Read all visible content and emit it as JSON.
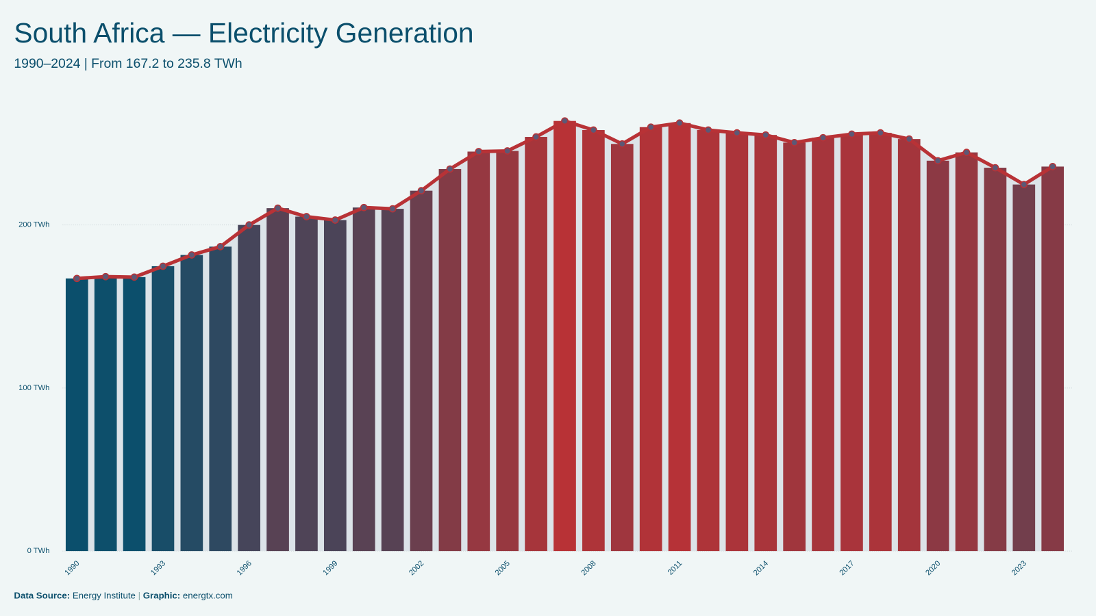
{
  "chart_data": {
    "type": "bar",
    "title": "South Africa — Electricity Generation",
    "subtitle": "1990–2024 | From 167.2 to 235.8 TWh",
    "x": [
      1990,
      1991,
      1992,
      1993,
      1994,
      1995,
      1996,
      1997,
      1998,
      1999,
      2000,
      2001,
      2002,
      2003,
      2004,
      2005,
      2006,
      2007,
      2008,
      2009,
      2010,
      2011,
      2012,
      2013,
      2014,
      2015,
      2016,
      2017,
      2018,
      2019,
      2020,
      2021,
      2022,
      2023,
      2024
    ],
    "values": [
      167.2,
      168.3,
      168.0,
      174.7,
      181.6,
      186.7,
      200.0,
      210.3,
      205.1,
      203.0,
      210.7,
      209.9,
      221.0,
      234.3,
      245.0,
      245.4,
      254.0,
      263.8,
      258.2,
      249.7,
      260.0,
      262.5,
      258.2,
      256.5,
      255.2,
      250.5,
      253.5,
      255.7,
      256.5,
      252.7,
      239.4,
      244.5,
      235.1,
      224.8,
      235.8
    ],
    "color_scale": [
      "#0b4f6c",
      "#b83236"
    ],
    "line_color": "#b83236",
    "marker_color": "#5d5875",
    "area_color": "#dce3e8",
    "xlim": [
      1989.5,
      2024.5
    ],
    "xticks": [
      1990,
      1993,
      1996,
      1999,
      2002,
      2005,
      2008,
      2011,
      2014,
      2017,
      2020,
      2023
    ],
    "ylim": [
      0,
      278
    ],
    "yticks": [
      {
        "value": 0,
        "label": "0 TWh"
      },
      {
        "value": 100,
        "label": "100 TWh"
      },
      {
        "value": 200,
        "label": "200 TWh"
      }
    ],
    "grid": true,
    "footer": {
      "source_label": "Data Source:",
      "source": "Energy Institute",
      "separator": "|",
      "graphic_label": "Graphic:",
      "graphic": "energtx.com"
    }
  }
}
